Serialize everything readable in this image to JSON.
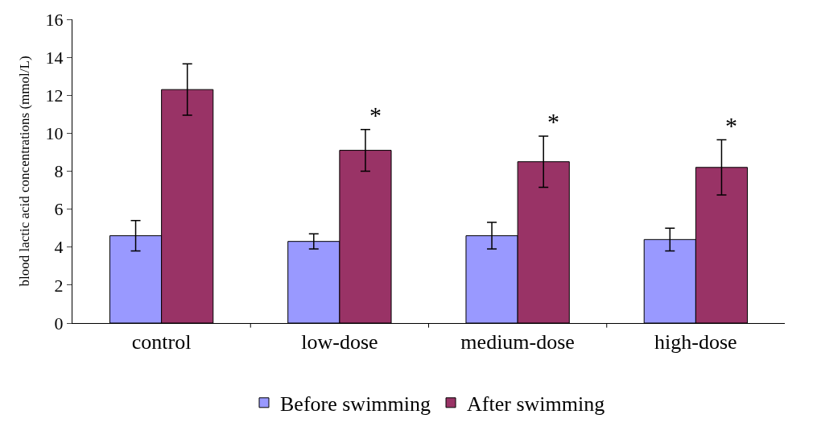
{
  "chart_data": {
    "type": "bar",
    "ylabel": "blood lactic acid concentrations (mmol/L)",
    "categories": [
      "control",
      "low-dose",
      "medium-dose",
      "high-dose"
    ],
    "series": [
      {
        "name": "Before swimming",
        "color": "#9999ff",
        "values": [
          4.6,
          4.3,
          4.6,
          4.4
        ],
        "errors": [
          0.8,
          0.4,
          0.7,
          0.6
        ]
      },
      {
        "name": "After swimming",
        "color": "#993366",
        "values": [
          12.3,
          9.1,
          8.5,
          8.2
        ],
        "errors": [
          1.35,
          1.1,
          1.35,
          1.45
        ]
      }
    ],
    "annotations": [
      "*",
      "*",
      "*"
    ],
    "ylim": [
      0,
      16
    ],
    "yticks": [
      0,
      2,
      4,
      6,
      8,
      10,
      12,
      14,
      16
    ],
    "legend": "bottom"
  }
}
